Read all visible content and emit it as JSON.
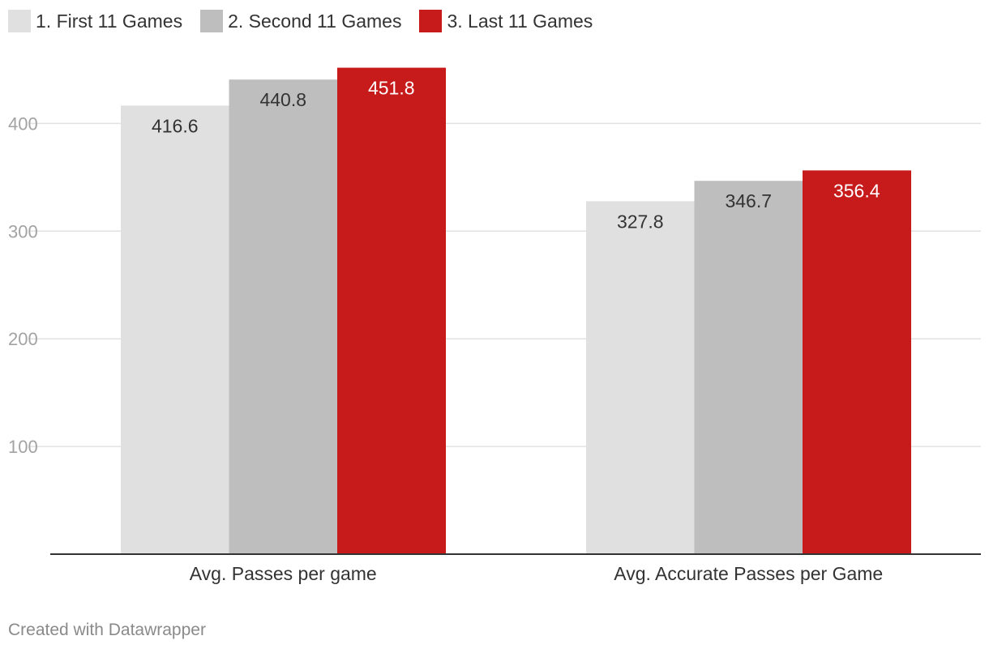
{
  "chart_data": {
    "type": "bar",
    "categories": [
      "Avg. Passes per game",
      "Avg. Accurate Passes per Game"
    ],
    "series": [
      {
        "name": "1. First 11 Games",
        "values": [
          416.6,
          327.8
        ],
        "color": "#e0e0e0",
        "label_color": "#333333"
      },
      {
        "name": "2. Second 11 Games",
        "values": [
          440.8,
          346.7
        ],
        "color": "#bebebe",
        "label_color": "#333333"
      },
      {
        "name": "3. Last 11 Games",
        "values": [
          451.8,
          356.4
        ],
        "color": "#c71b1b",
        "label_color": "#ffffff"
      }
    ],
    "value_labels": [
      [
        "416.6",
        "327.8"
      ],
      [
        "440.8",
        "346.7"
      ],
      [
        "451.8",
        "356.4"
      ]
    ],
    "y_ticks": [
      100,
      200,
      300,
      400
    ],
    "y_tick_labels": [
      "100",
      "200",
      "300",
      "400"
    ],
    "ylim": [
      0,
      460
    ],
    "legend_position": "top-left",
    "grid": true
  },
  "footer": {
    "credit": "Created with Datawrapper"
  }
}
